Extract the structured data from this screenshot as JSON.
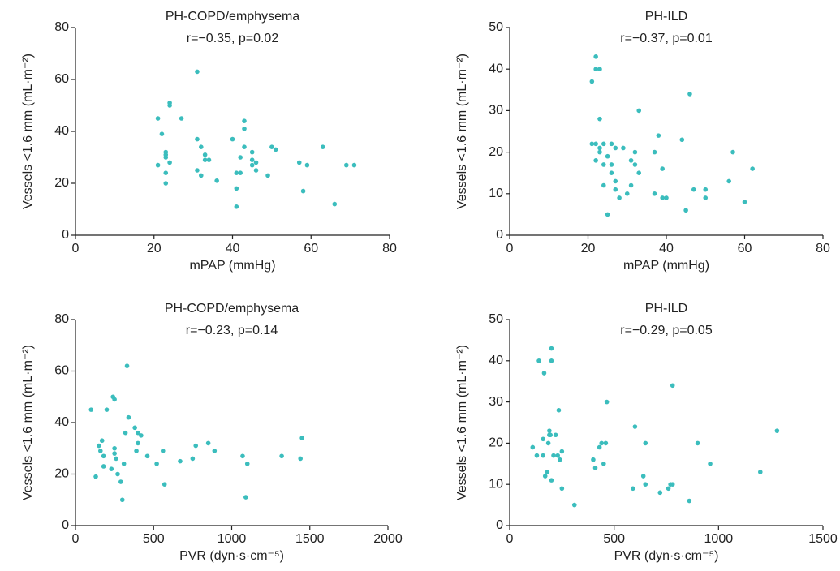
{
  "chart_data": [
    {
      "type": "scatter",
      "title": "PH-COPD/emphysema",
      "subtitle": "r=−0.35, p=0.02",
      "xlabel": "mPAP (mmHg)",
      "ylabel": "Vessels <1.6 mm (mL·m⁻²)",
      "color": "#3bbdbd",
      "x": [
        21,
        21,
        22,
        23,
        23,
        23,
        23,
        23,
        24,
        24,
        24,
        27,
        31,
        31,
        31,
        32,
        32,
        33,
        33,
        34,
        36,
        40,
        41,
        41,
        41,
        42,
        42,
        43,
        43,
        43,
        45,
        45,
        45,
        46,
        46,
        49,
        50,
        51,
        57,
        58,
        59,
        63,
        66,
        69,
        71
      ],
      "values": [
        45,
        27,
        39,
        32,
        31,
        30,
        24,
        20,
        51,
        50,
        28,
        45,
        63,
        37,
        25,
        34,
        23,
        31,
        29,
        29,
        21,
        37,
        11,
        24,
        18,
        24,
        30,
        41,
        44,
        34,
        32,
        29,
        27,
        25,
        28,
        23,
        34,
        33,
        28,
        17,
        27,
        34,
        12,
        27,
        27
      ],
      "xlim": [
        0,
        80
      ],
      "ylim": [
        0,
        80
      ],
      "xticks": [
        0,
        20,
        40,
        60,
        80
      ],
      "yticks": [
        0,
        20,
        40,
        60,
        80
      ]
    },
    {
      "type": "scatter",
      "title": "PH-ILD",
      "subtitle": "r=−0.37, p=0.01",
      "xlabel": "mPAP (mmHg)",
      "ylabel": "Vessels <1.6 mm (mL·m⁻²)",
      "color": "#3bbdbd",
      "x": [
        21,
        21,
        22,
        22,
        23,
        22,
        22,
        23,
        23,
        23,
        24,
        24,
        24,
        25,
        25,
        26,
        26,
        26,
        27,
        27,
        27,
        28,
        29,
        30,
        31,
        31,
        32,
        32,
        33,
        33,
        37,
        37,
        38,
        39,
        39,
        40,
        44,
        45,
        46,
        47,
        50,
        50,
        56,
        57,
        60,
        62
      ],
      "values": [
        37,
        22,
        43,
        40,
        40,
        22,
        18,
        28,
        20,
        21,
        17,
        22,
        12,
        5,
        19,
        22,
        17,
        15,
        11,
        13,
        21,
        9,
        21,
        10,
        18,
        12,
        20,
        17,
        30,
        15,
        20,
        10,
        24,
        9,
        16,
        9,
        23,
        6,
        34,
        11,
        11,
        9,
        13,
        20,
        8,
        16
      ],
      "xlim": [
        0,
        80
      ],
      "ylim": [
        0,
        50
      ],
      "xticks": [
        0,
        20,
        40,
        60,
        80
      ],
      "yticks": [
        0,
        10,
        20,
        30,
        40,
        50
      ]
    },
    {
      "type": "scatter",
      "title": "PH-COPD/emphysema",
      "subtitle": "r=−0.23, p=0.14",
      "xlabel": "PVR (dyn·s·cm⁻⁵)",
      "ylabel": "Vessels <1.6 mm (mL·m⁻²)",
      "color": "#3bbdbd",
      "x": [
        100,
        130,
        150,
        160,
        170,
        180,
        180,
        200,
        230,
        240,
        250,
        250,
        250,
        260,
        270,
        290,
        300,
        310,
        320,
        330,
        340,
        380,
        390,
        400,
        400,
        420,
        460,
        520,
        560,
        570,
        670,
        750,
        770,
        850,
        890,
        1070,
        1090,
        1100,
        1320,
        1440,
        1450
      ],
      "values": [
        45,
        19,
        31,
        29,
        33,
        23,
        27,
        45,
        22,
        50,
        49,
        30,
        28,
        26,
        20,
        17,
        10,
        24,
        36,
        62,
        42,
        38,
        29,
        36,
        32,
        35,
        27,
        24,
        29,
        16,
        25,
        26,
        31,
        32,
        29,
        27,
        11,
        24,
        27,
        26,
        34
      ],
      "xlim": [
        0,
        2000
      ],
      "ylim": [
        0,
        80
      ],
      "xticks": [
        0,
        500,
        1000,
        1500,
        2000
      ],
      "yticks": [
        0,
        20,
        40,
        60,
        80
      ]
    },
    {
      "type": "scatter",
      "title": "PH-ILD",
      "subtitle": "r=−0.29, p=0.05",
      "xlabel": "PVR  (dyn·s·cm⁻⁵)",
      "ylabel": "Vessels <1.6 mm (mL·m⁻²)",
      "color": "#3bbdbd",
      "x": [
        110,
        130,
        140,
        160,
        160,
        165,
        170,
        180,
        185,
        190,
        190,
        195,
        200,
        200,
        200,
        210,
        220,
        230,
        235,
        240,
        250,
        250,
        310,
        400,
        410,
        430,
        440,
        450,
        460,
        465,
        590,
        600,
        640,
        650,
        650,
        720,
        760,
        770,
        780,
        780,
        860,
        900,
        960,
        1200,
        1280
      ],
      "values": [
        19,
        17,
        40,
        17,
        21,
        37,
        12,
        13,
        20,
        23,
        22,
        22,
        40,
        43,
        11,
        17,
        22,
        17,
        28,
        16,
        18,
        9,
        5,
        16,
        14,
        19,
        20,
        15,
        20,
        30,
        9,
        24,
        12,
        10,
        20,
        8,
        9,
        10,
        10,
        34,
        6,
        20,
        15,
        13,
        23
      ],
      "xlim": [
        0,
        1500
      ],
      "ylim": [
        0,
        50
      ],
      "xticks": [
        0,
        500,
        1000,
        1500
      ],
      "yticks": [
        0,
        10,
        20,
        30,
        40,
        50
      ]
    }
  ]
}
